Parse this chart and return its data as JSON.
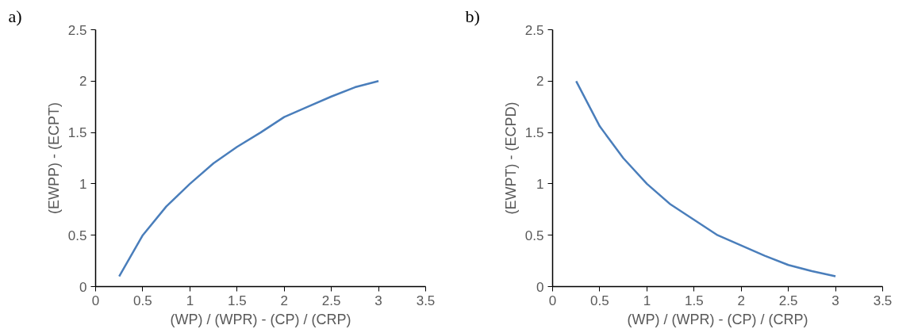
{
  "chart_data": [
    {
      "type": "line",
      "annotations": [
        "a)"
      ],
      "xlabel": "(WP) / (WPR) - (CP) / (CRP)",
      "ylabel": "(EWPP) - (ECPT)",
      "x": [
        0.25,
        0.5,
        0.75,
        1,
        1.25,
        1.5,
        1.75,
        2,
        2.25,
        2.5,
        2.75,
        3
      ],
      "series": [
        {
          "color": "#4a7ebb",
          "values": [
            0.1,
            0.5,
            0.78,
            1.0,
            1.2,
            1.36,
            1.5,
            1.65,
            1.75,
            1.85,
            1.94,
            2.0
          ]
        }
      ],
      "xlim": [
        0,
        3.5
      ],
      "xticks": [
        0,
        0.5,
        1,
        1.5,
        2,
        2.5,
        3,
        3.5
      ],
      "ylim": [
        0,
        2.5
      ],
      "yticks": [
        0,
        0.5,
        1,
        1.5,
        2,
        2.5
      ],
      "grid": false
    },
    {
      "type": "line",
      "annotations": [
        "b)"
      ],
      "xlabel": "(WP) / (WPR) - (CP) / (CRP)",
      "ylabel": "(EWPT) - (ECPD)",
      "x": [
        0.25,
        0.5,
        0.75,
        1,
        1.25,
        1.5,
        1.75,
        2,
        2.25,
        2.5,
        2.75,
        3
      ],
      "series": [
        {
          "color": "#4a7ebb",
          "values": [
            2.0,
            1.56,
            1.25,
            1.0,
            0.8,
            0.65,
            0.5,
            0.4,
            0.3,
            0.21,
            0.15,
            0.1
          ]
        }
      ],
      "xlim": [
        0,
        3.5
      ],
      "xticks": [
        0,
        0.5,
        1,
        1.5,
        2,
        2.5,
        3,
        3.5
      ],
      "ylim": [
        0,
        2.5
      ],
      "yticks": [
        0,
        0.5,
        1,
        1.5,
        2,
        2.5
      ],
      "grid": false
    }
  ]
}
